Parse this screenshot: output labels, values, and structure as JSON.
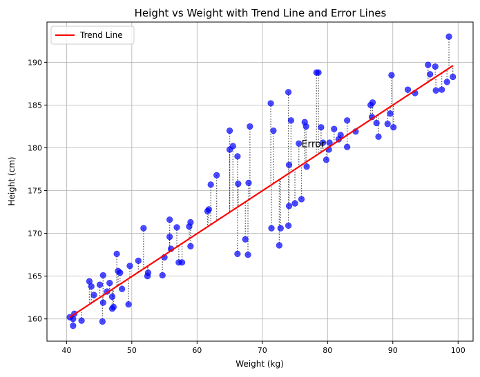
{
  "chart_data": {
    "type": "scatter",
    "title": "Height vs Weight with Trend Line and Error Lines",
    "xlabel": "Weight (kg)",
    "ylabel": "Height (cm)",
    "xlim": [
      37.0,
      102.3
    ],
    "ylim": [
      157.4,
      194.7
    ],
    "xticks": [
      40,
      50,
      60,
      70,
      80,
      90,
      100
    ],
    "yticks": [
      160,
      165,
      170,
      175,
      180,
      185,
      190
    ],
    "grid": true,
    "legend": {
      "placement": "upper-left",
      "entries": [
        "Trend Line"
      ]
    },
    "annotation": {
      "text": "Error",
      "x": 76.0,
      "y": 180.5
    },
    "colors": {
      "points": "#0000ff",
      "trend": "#ff0000",
      "error_lines": "#555555",
      "grid": "#b0b0b0"
    },
    "trend_line": {
      "x": [
        40.5,
        99.2
      ],
      "y": [
        160.2,
        189.6
      ]
    },
    "series": [
      {
        "type": "scatter",
        "points": [
          [
            40.5,
            160.2
          ],
          [
            41.0,
            160.0
          ],
          [
            41.0,
            159.2
          ],
          [
            41.2,
            160.6
          ],
          [
            42.3,
            159.8
          ],
          [
            43.5,
            164.4
          ],
          [
            43.8,
            163.8
          ],
          [
            44.2,
            162.8
          ],
          [
            45.1,
            164.0
          ],
          [
            45.5,
            159.7
          ],
          [
            45.6,
            161.9
          ],
          [
            45.6,
            165.1
          ],
          [
            46.2,
            163.2
          ],
          [
            46.6,
            164.2
          ],
          [
            47.0,
            162.6
          ],
          [
            47.0,
            161.2
          ],
          [
            47.2,
            161.4
          ],
          [
            47.7,
            167.6
          ],
          [
            47.9,
            165.6
          ],
          [
            48.2,
            165.4
          ],
          [
            48.5,
            163.5
          ],
          [
            49.5,
            161.7
          ],
          [
            49.7,
            166.2
          ],
          [
            51.0,
            166.8
          ],
          [
            51.8,
            170.6
          ],
          [
            52.4,
            165.0
          ],
          [
            52.5,
            165.4
          ],
          [
            54.7,
            165.1
          ],
          [
            55.0,
            167.2
          ],
          [
            55.8,
            171.6
          ],
          [
            55.8,
            169.6
          ],
          [
            56.0,
            168.2
          ],
          [
            56.9,
            170.7
          ],
          [
            57.2,
            166.6
          ],
          [
            57.7,
            166.6
          ],
          [
            58.8,
            170.8
          ],
          [
            59.0,
            171.3
          ],
          [
            59.0,
            168.5
          ],
          [
            61.6,
            172.6
          ],
          [
            61.8,
            172.8
          ],
          [
            62.1,
            175.7
          ],
          [
            63.0,
            176.8
          ],
          [
            65.0,
            182.0
          ],
          [
            65.0,
            179.8
          ],
          [
            65.5,
            180.2
          ],
          [
            66.2,
            179.0
          ],
          [
            66.2,
            167.6
          ],
          [
            66.3,
            175.8
          ],
          [
            67.4,
            169.3
          ],
          [
            67.8,
            167.5
          ],
          [
            67.9,
            175.9
          ],
          [
            68.1,
            182.5
          ],
          [
            71.3,
            185.2
          ],
          [
            71.4,
            170.6
          ],
          [
            71.7,
            182.0
          ],
          [
            72.6,
            168.6
          ],
          [
            72.8,
            170.6
          ],
          [
            74.0,
            170.9
          ],
          [
            74.0,
            186.5
          ],
          [
            74.1,
            178.0
          ],
          [
            74.1,
            173.2
          ],
          [
            74.4,
            183.2
          ],
          [
            75.0,
            173.5
          ],
          [
            75.6,
            180.5
          ],
          [
            76.0,
            174.0
          ],
          [
            76.5,
            183.0
          ],
          [
            76.7,
            182.5
          ],
          [
            76.8,
            177.8
          ],
          [
            78.3,
            188.8
          ],
          [
            78.6,
            188.8
          ],
          [
            79.0,
            182.4
          ],
          [
            79.3,
            180.6
          ],
          [
            79.8,
            178.6
          ],
          [
            80.2,
            179.8
          ],
          [
            80.3,
            180.6
          ],
          [
            81.0,
            182.2
          ],
          [
            81.7,
            181.0
          ],
          [
            82.0,
            181.5
          ],
          [
            83.0,
            183.2
          ],
          [
            83.0,
            180.1
          ],
          [
            84.3,
            181.9
          ],
          [
            86.6,
            185.0
          ],
          [
            86.8,
            183.6
          ],
          [
            86.9,
            185.3
          ],
          [
            87.5,
            182.9
          ],
          [
            87.8,
            181.3
          ],
          [
            89.2,
            182.8
          ],
          [
            89.6,
            184.0
          ],
          [
            89.8,
            188.5
          ],
          [
            90.1,
            182.4
          ],
          [
            92.3,
            186.8
          ],
          [
            93.4,
            186.4
          ],
          [
            95.4,
            189.7
          ],
          [
            95.7,
            188.6
          ],
          [
            96.5,
            189.5
          ],
          [
            96.6,
            186.7
          ],
          [
            97.5,
            186.8
          ],
          [
            98.3,
            187.7
          ],
          [
            98.6,
            193.0
          ],
          [
            99.2,
            188.3
          ]
        ]
      }
    ]
  }
}
